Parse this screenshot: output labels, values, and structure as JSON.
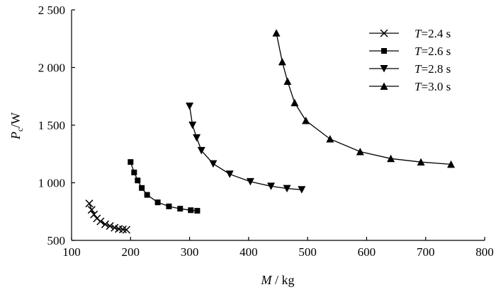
{
  "chart_data": {
    "type": "line",
    "xlabel": {
      "var": "M",
      "unit": " / kg"
    },
    "ylabel": {
      "var": "P",
      "sub": "c",
      "unit": "/W"
    },
    "xlim": [
      100,
      800
    ],
    "ylim": [
      500,
      2500
    ],
    "xticks": [
      100,
      200,
      300,
      400,
      500,
      600,
      700,
      800
    ],
    "yticks": [
      500,
      1000,
      1500,
      2000,
      2500
    ],
    "xtick_labels": [
      "100",
      "200",
      "300",
      "400",
      "500",
      "600",
      "700",
      "800"
    ],
    "ytick_labels": [
      "500",
      "1 000",
      "1 500",
      "2 000",
      "2 500"
    ],
    "grid": false,
    "legend_position": "top-right",
    "series": [
      {
        "name": "2.4 s",
        "var": "T",
        "eq": "=",
        "marker": "x",
        "x": [
          130,
          134,
          138,
          143,
          149,
          157,
          165,
          173,
          180,
          187,
          193
        ],
        "y": [
          820,
          765,
          725,
          690,
          665,
          640,
          625,
          610,
          600,
          595,
          592
        ]
      },
      {
        "name": "2.6 s",
        "var": "T",
        "eq": "=",
        "marker": "square",
        "x": [
          200,
          206,
          212,
          219,
          228,
          246,
          265,
          284,
          302,
          313
        ],
        "y": [
          1180,
          1090,
          1020,
          955,
          895,
          830,
          795,
          775,
          762,
          757
        ]
      },
      {
        "name": "2.8 s",
        "var": "T",
        "eq": "=",
        "marker": "triangle-down",
        "x": [
          300,
          305,
          312,
          320,
          340,
          368,
          403,
          438,
          465,
          490
        ],
        "y": [
          1665,
          1500,
          1390,
          1280,
          1165,
          1075,
          1010,
          970,
          950,
          940
        ]
      },
      {
        "name": "3.0 s",
        "var": "T",
        "eq": "=",
        "marker": "triangle-up",
        "x": [
          447,
          457,
          466,
          478,
          497,
          538,
          589,
          641,
          692,
          743
        ],
        "y": [
          2300,
          2050,
          1880,
          1695,
          1540,
          1380,
          1270,
          1210,
          1180,
          1160
        ]
      }
    ]
  }
}
